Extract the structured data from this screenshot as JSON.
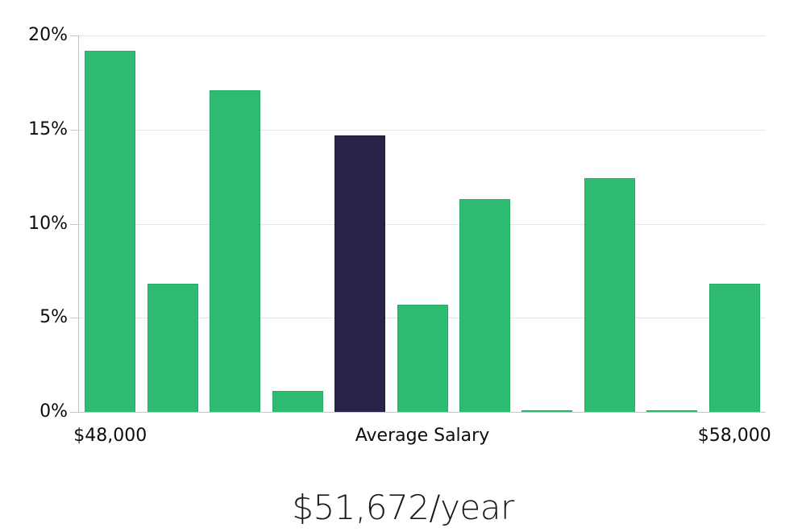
{
  "chart_data": {
    "type": "bar",
    "title": "$51,672/year",
    "values": [
      19.2,
      6.8,
      17.1,
      1.1,
      14.7,
      5.7,
      11.3,
      0.1,
      12.4,
      0.1,
      6.8
    ],
    "highlighted_index": 4,
    "highlighted_meaning": "Average Salary",
    "x_tick_labels": [
      "$48,000",
      "Average Salary",
      "$58,000"
    ],
    "y_tick_labels": [
      "0%",
      "5%",
      "10%",
      "15%",
      "20%"
    ],
    "ylim": [
      0,
      20
    ],
    "grid": true,
    "legend": false,
    "colors": {
      "bar": "#2ebb72",
      "bar_border": "#29aa67",
      "highlight": "#282449",
      "highlight_border": "#1f1c38",
      "gridline": "#e4e4e4",
      "axis": "#c6c6c6",
      "tick_text": "#0d0d0d",
      "title_text": "#1a1a1a",
      "background": "#ffffff"
    }
  }
}
